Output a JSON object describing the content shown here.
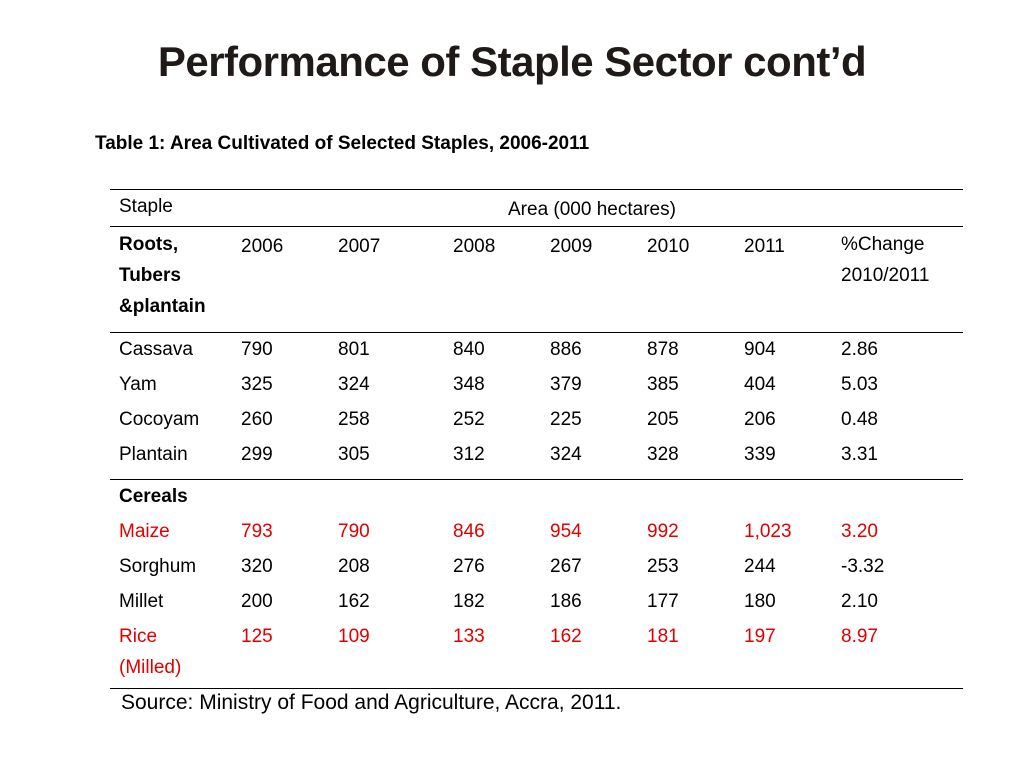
{
  "title": "Performance of Staple Sector cont’d",
  "subtitle": "Table 1: Area Cultivated of Selected Staples, 2006-2011",
  "table": {
    "staple_header": "Staple",
    "area_header": "Area (000 hectares)",
    "group1_label_lines": [
      "Roots,",
      "Tubers",
      "&plantain"
    ],
    "years": [
      "2006",
      "2007",
      "2008",
      "2009",
      "2010",
      "2011"
    ],
    "change_header_lines": [
      "%Change",
      "2010/2011"
    ],
    "group1_rows": [
      {
        "name": "Cassava",
        "values": [
          "790",
          "801",
          "840",
          "886",
          "878",
          "904",
          "2.86"
        ]
      },
      {
        "name": "Yam",
        "values": [
          "325",
          "324",
          "348",
          "379",
          "385",
          "404",
          "5.03"
        ]
      },
      {
        "name": "Cocoyam",
        "values": [
          "260",
          "258",
          "252",
          "225",
          "205",
          "206",
          "0.48"
        ]
      },
      {
        "name": "Plantain",
        "values": [
          "299",
          "305",
          "312",
          "324",
          "328",
          "339",
          "3.31"
        ]
      }
    ],
    "group2_label": "Cereals",
    "group2_rows": [
      {
        "name": "Maize",
        "values": [
          "793",
          "790",
          "846",
          "954",
          "992",
          "1,023",
          "3.20"
        ]
      },
      {
        "name": "Sorghum",
        "values": [
          "320",
          "208",
          "276",
          "267",
          "253",
          "244",
          "-3.32"
        ]
      },
      {
        "name": "Millet",
        "values": [
          "200",
          "162",
          "182",
          "186",
          "177",
          "180",
          "2.10"
        ]
      },
      {
        "name_lines": [
          "Rice",
          "(Milled)"
        ],
        "values": [
          "125",
          "109",
          "133",
          "162",
          "181",
          "197",
          "8.97"
        ]
      }
    ]
  },
  "source": "Source: Ministry of Food and Agriculture, Accra, 2011.",
  "colors": {
    "highlight": "#e00000",
    "title": "#1f1a17"
  }
}
